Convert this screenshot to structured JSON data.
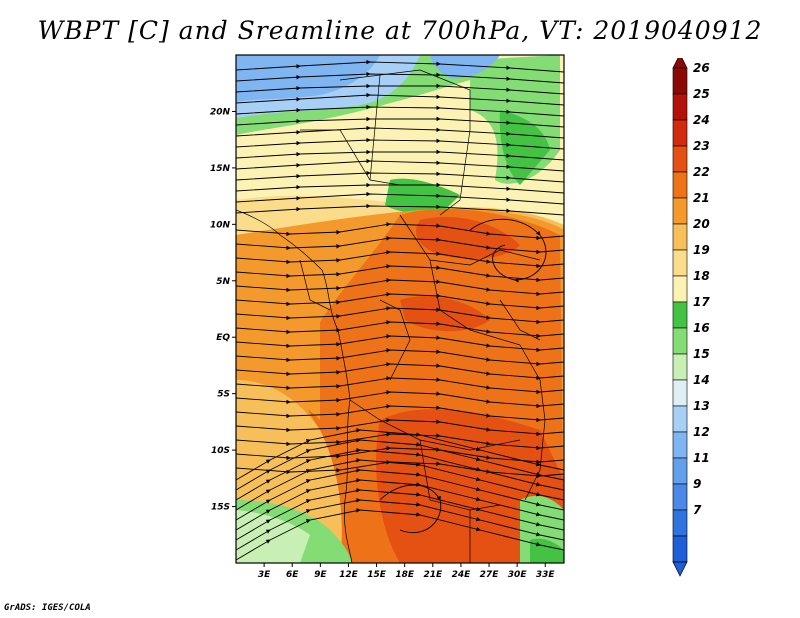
{
  "title": "WBPT [C] and Sreamline at 700hPa, VT: 2019040912",
  "footer": "GrADS: IGES/COLA",
  "map": {
    "lon_labels": [
      "3E",
      "6E",
      "9E",
      "12E",
      "15E",
      "18E",
      "21E",
      "24E",
      "27E",
      "30E",
      "33E"
    ],
    "lat_labels": [
      "20N",
      "15N",
      "10N",
      "5N",
      "EQ",
      "5S",
      "10S",
      "15S"
    ],
    "lon_range": [
      0,
      35
    ],
    "lat_range": [
      -20,
      25
    ]
  },
  "colorbar": {
    "labels": [
      "7",
      "9",
      "11",
      "12",
      "13",
      "14",
      "15",
      "16",
      "17",
      "18",
      "19",
      "20",
      "21",
      "22",
      "23",
      "24",
      "25",
      "26"
    ],
    "colors": [
      "#1e5fd8",
      "#2f74e0",
      "#4a8ae6",
      "#63a0ec",
      "#7fb5f0",
      "#a8d0f6",
      "#dff0f4",
      "#c8f0b4",
      "#84dc74",
      "#44c244",
      "#fbf2b4",
      "#fadc8a",
      "#f7bf5a",
      "#f49a2c",
      "#ee7318",
      "#e55112",
      "#d12a0e",
      "#b3120a",
      "#8c0a06"
    ]
  }
}
